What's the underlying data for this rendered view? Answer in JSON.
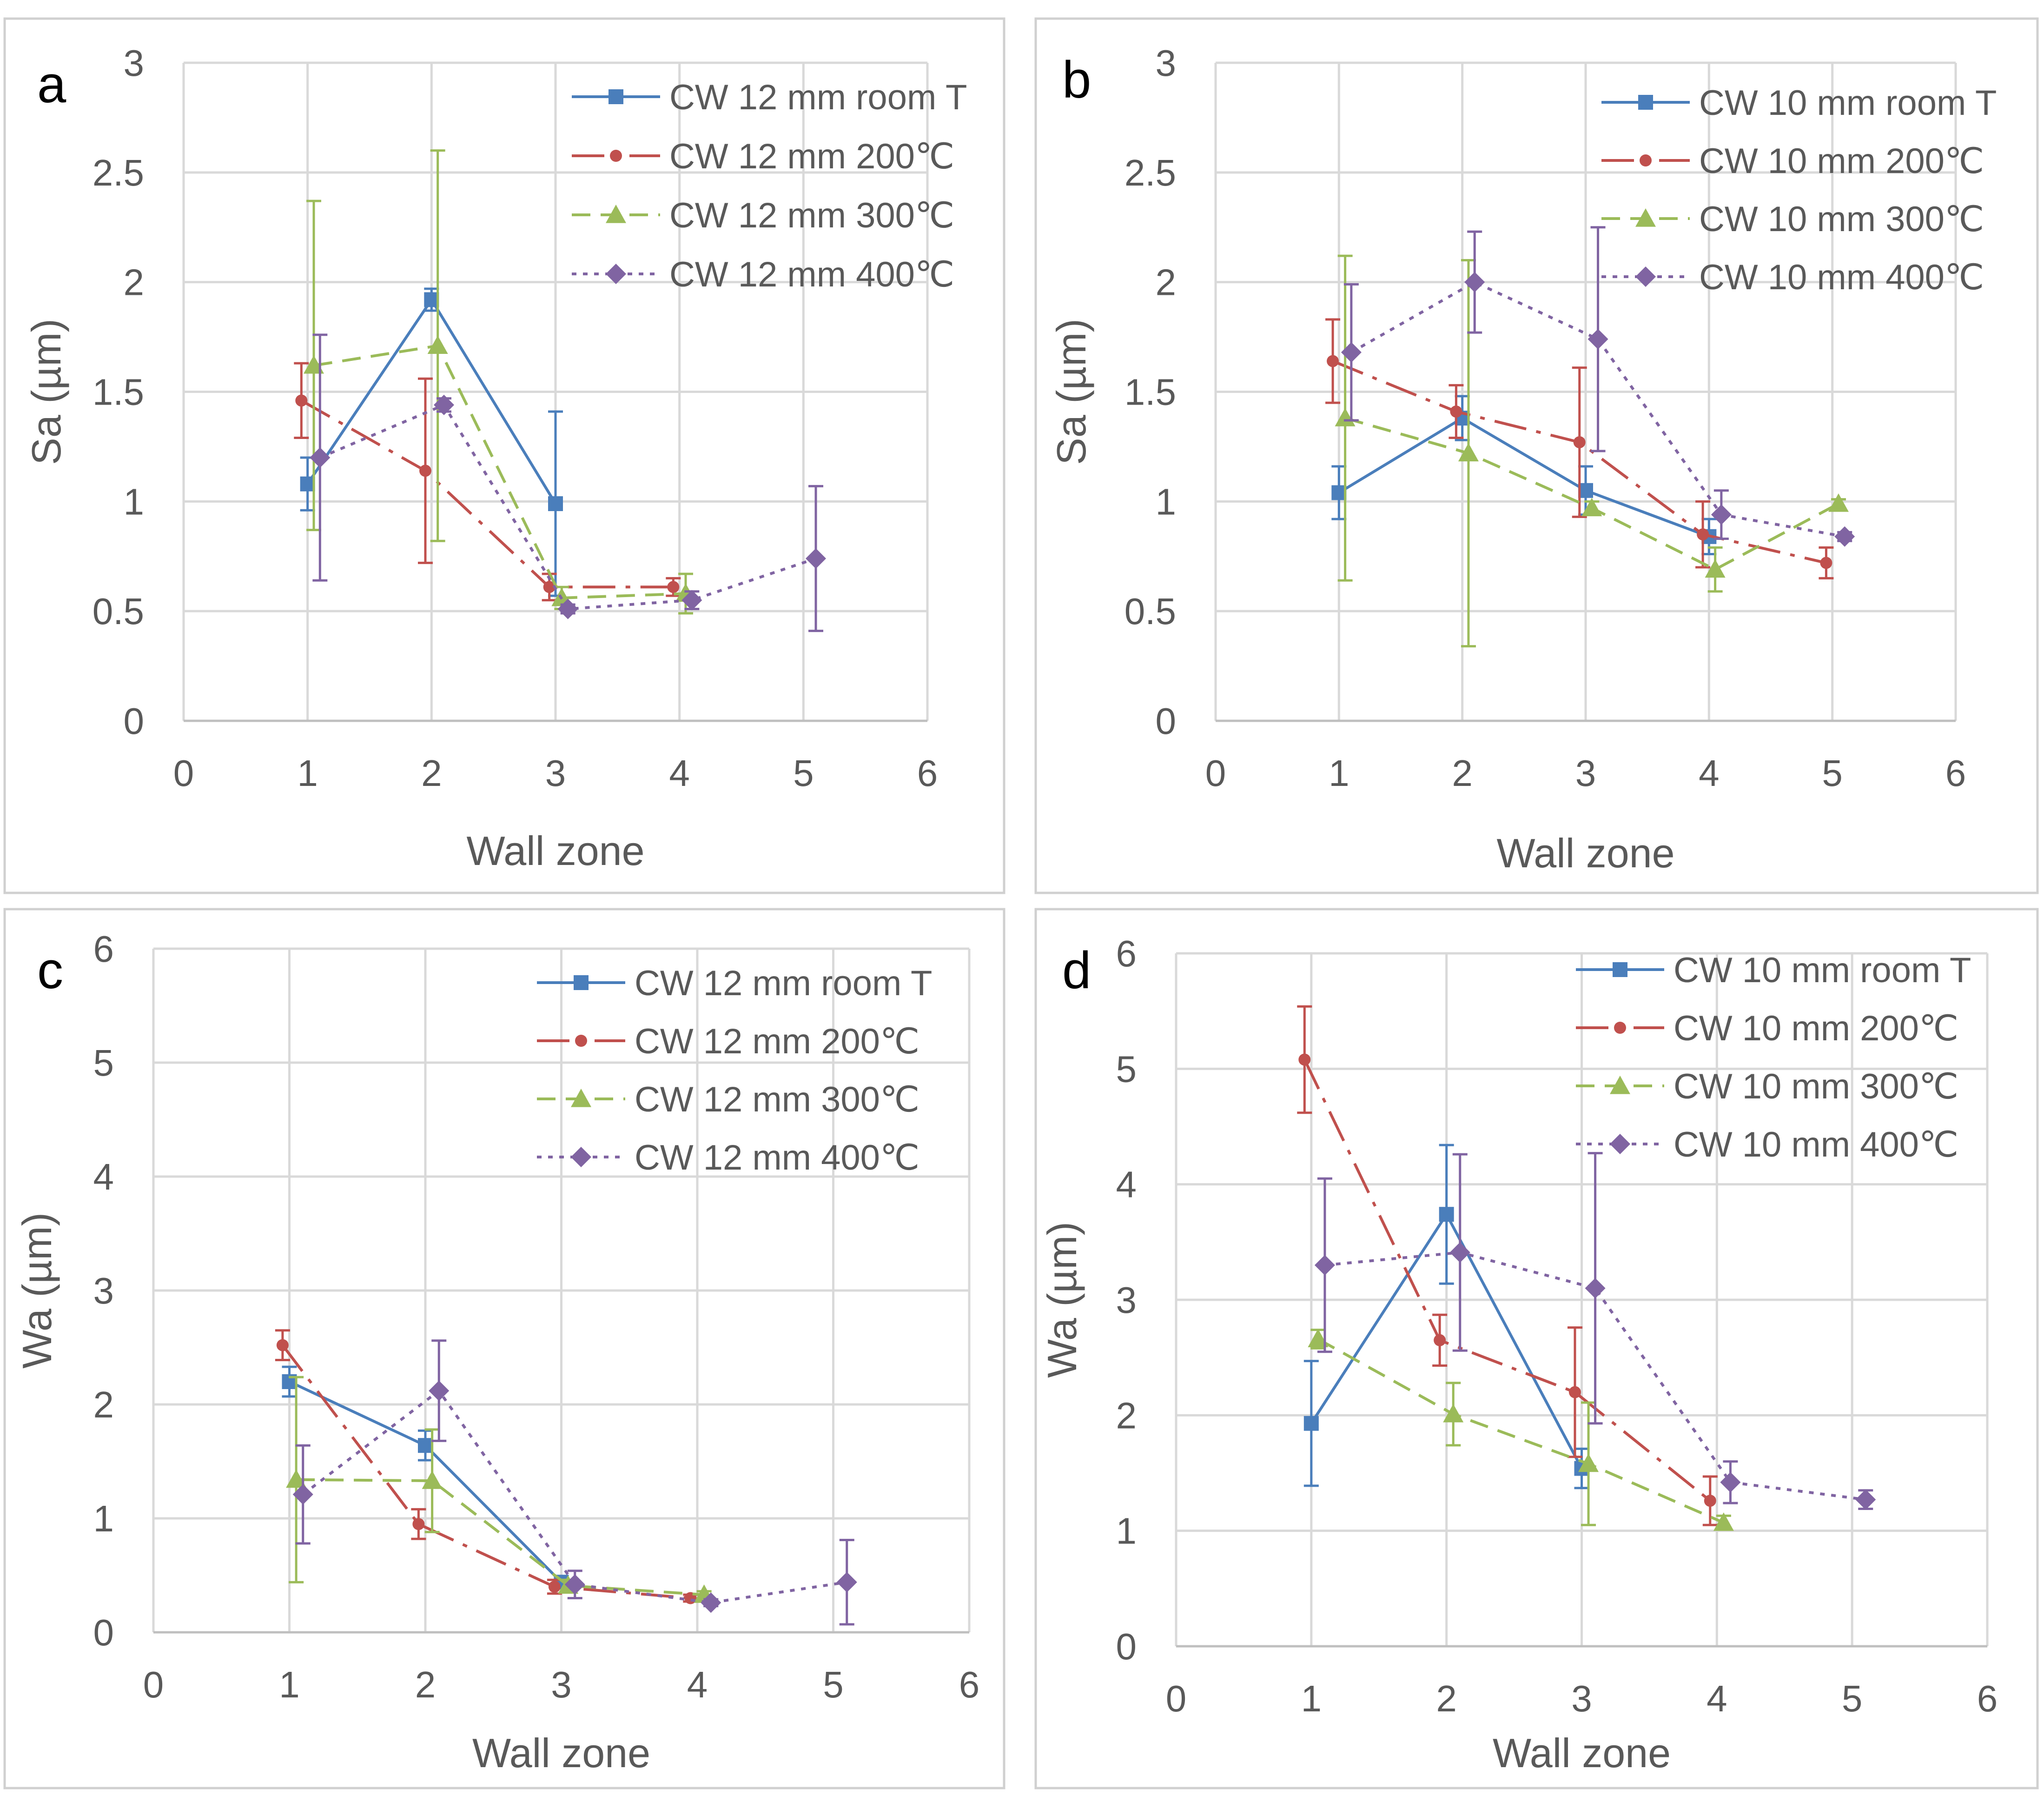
{
  "colors": {
    "room_T": "#4a7ebb",
    "200C": "#c0504d",
    "300C": "#9bbb59",
    "400C": "#8064a2"
  },
  "chart_data": [
    {
      "panel": "a",
      "type": "line",
      "xlabel": "Wall zone",
      "ylabel": "Sa (µm)",
      "xlim": [
        0,
        6
      ],
      "ylim": [
        0,
        3
      ],
      "xticks": [
        "0",
        "1",
        "2",
        "3",
        "4",
        "5",
        "6"
      ],
      "yticks": [
        "0",
        "0.5",
        "1",
        "1.5",
        "2",
        "2.5",
        "3"
      ],
      "legend_position": "top-right",
      "series": [
        {
          "name": "CW 12 mm room T",
          "key": "room_T",
          "marker": "square",
          "dash": "solid",
          "x": [
            1,
            2,
            3
          ],
          "y": [
            1.08,
            1.92,
            0.99
          ],
          "err": [
            0.12,
            0.05,
            0.42
          ]
        },
        {
          "name": "CW 12 mm 200℃",
          "key": "200C",
          "marker": "circle",
          "dash": "dashdot",
          "x": [
            0.95,
            1.95,
            2.95,
            3.95
          ],
          "y": [
            1.46,
            1.14,
            0.61,
            0.61
          ],
          "err": [
            0.17,
            0.42,
            0.06,
            0.04
          ]
        },
        {
          "name": "CW 12 mm 300℃",
          "key": "300C",
          "marker": "triangle",
          "dash": "dashed",
          "x": [
            1.05,
            2.05,
            3.05,
            4.05
          ],
          "y": [
            1.62,
            1.71,
            0.56,
            0.58
          ],
          "err": [
            0.75,
            0.89,
            0.05,
            0.09
          ]
        },
        {
          "name": "CW 12 mm 400℃",
          "key": "400C",
          "marker": "diamond",
          "dash": "dotted",
          "x": [
            1.1,
            2.1,
            3.1,
            4.1,
            5.1
          ],
          "y": [
            1.2,
            1.44,
            0.51,
            0.55,
            0.74
          ],
          "err": [
            0.56,
            0.03,
            0.02,
            0.04,
            0.33
          ]
        }
      ]
    },
    {
      "panel": "b",
      "type": "line",
      "xlabel": "Wall zone",
      "ylabel": "Sa (µm)",
      "xlim": [
        0,
        6
      ],
      "ylim": [
        0,
        3
      ],
      "xticks": [
        "0",
        "1",
        "2",
        "3",
        "4",
        "5",
        "6"
      ],
      "yticks": [
        "0",
        "0.5",
        "1",
        "1.5",
        "2",
        "2.5",
        "3"
      ],
      "legend_position": "top-right",
      "series": [
        {
          "name": "CW 10 mm room T",
          "key": "room_T",
          "marker": "square",
          "dash": "solid",
          "x": [
            1,
            2,
            3,
            4
          ],
          "y": [
            1.04,
            1.38,
            1.05,
            0.84
          ],
          "err": [
            0.12,
            0.1,
            0.11,
            0.08
          ]
        },
        {
          "name": "CW 10 mm 200℃",
          "key": "200C",
          "marker": "circle",
          "dash": "dashdot",
          "x": [
            0.95,
            1.95,
            2.95,
            3.95,
            4.95
          ],
          "y": [
            1.64,
            1.41,
            1.27,
            0.85,
            0.72
          ],
          "err": [
            0.19,
            0.12,
            0.34,
            0.15,
            0.07
          ]
        },
        {
          "name": "CW 10 mm 300℃",
          "key": "300C",
          "marker": "triangle",
          "dash": "dashed",
          "x": [
            1.05,
            2.05,
            3.05,
            4.05,
            5.05
          ],
          "y": [
            1.38,
            1.22,
            0.97,
            0.69,
            0.99
          ],
          "err": [
            0.74,
            0.88,
            0.03,
            0.1,
            0.02
          ]
        },
        {
          "name": "CW 10 mm 400℃",
          "key": "400C",
          "marker": "diamond",
          "dash": "dotted",
          "x": [
            1.1,
            2.1,
            3.1,
            4.1,
            5.1
          ],
          "y": [
            1.68,
            2.0,
            1.74,
            0.94,
            0.84
          ],
          "err": [
            0.31,
            0.23,
            0.51,
            0.11,
            0.02
          ]
        }
      ]
    },
    {
      "panel": "c",
      "type": "line",
      "xlabel": "Wall zone",
      "ylabel": "Wa (µm)",
      "xlim": [
        0,
        6
      ],
      "ylim": [
        0,
        6
      ],
      "xticks": [
        "0",
        "1",
        "2",
        "3",
        "4",
        "5",
        "6"
      ],
      "yticks": [
        "0",
        "1",
        "2",
        "3",
        "4",
        "5",
        "6"
      ],
      "legend_position": "top-right",
      "series": [
        {
          "name": "CW 12 mm room T",
          "key": "room_T",
          "marker": "square",
          "dash": "solid",
          "x": [
            1,
            2,
            3
          ],
          "y": [
            2.2,
            1.64,
            0.44
          ],
          "err": [
            0.13,
            0.13,
            0.05
          ]
        },
        {
          "name": "CW 12 mm 200℃",
          "key": "200C",
          "marker": "circle",
          "dash": "dashdot",
          "x": [
            0.95,
            1.95,
            2.95,
            3.95
          ],
          "y": [
            2.52,
            0.95,
            0.4,
            0.3
          ],
          "err": [
            0.13,
            0.13,
            0.06,
            0.03
          ]
        },
        {
          "name": "CW 12 mm 300℃",
          "key": "300C",
          "marker": "triangle",
          "dash": "dashed",
          "x": [
            1.05,
            2.05,
            3.05,
            4.05
          ],
          "y": [
            1.34,
            1.33,
            0.41,
            0.33
          ],
          "err": [
            0.9,
            0.45,
            0.05,
            0.03
          ]
        },
        {
          "name": "CW 12 mm 400℃",
          "key": "400C",
          "marker": "diamond",
          "dash": "dotted",
          "x": [
            1.1,
            2.1,
            3.1,
            4.1,
            5.1
          ],
          "y": [
            1.21,
            2.12,
            0.42,
            0.26,
            0.44
          ],
          "err": [
            0.43,
            0.44,
            0.12,
            0.03,
            0.37
          ]
        }
      ]
    },
    {
      "panel": "d",
      "type": "line",
      "xlabel": "Wall zone",
      "ylabel": "Wa (µm)",
      "xlim": [
        0,
        6
      ],
      "ylim": [
        0,
        6
      ],
      "xticks": [
        "0",
        "1",
        "2",
        "3",
        "4",
        "5",
        "6"
      ],
      "yticks": [
        "0",
        "1",
        "2",
        "3",
        "4",
        "5",
        "6"
      ],
      "legend_position": "top-right",
      "series": [
        {
          "name": "CW 10 mm room T",
          "key": "room_T",
          "marker": "square",
          "dash": "solid",
          "x": [
            1,
            2,
            3
          ],
          "y": [
            1.93,
            3.74,
            1.54
          ],
          "err": [
            0.54,
            0.6,
            0.17
          ]
        },
        {
          "name": "CW 10 mm 200℃",
          "key": "200C",
          "marker": "circle",
          "dash": "dashdot",
          "x": [
            0.95,
            1.95,
            2.95,
            3.95
          ],
          "y": [
            5.08,
            2.65,
            2.2,
            1.26
          ],
          "err": [
            0.46,
            0.22,
            0.56,
            0.21
          ]
        },
        {
          "name": "CW 10 mm 300℃",
          "key": "300C",
          "marker": "triangle",
          "dash": "dashed",
          "x": [
            1.05,
            2.05,
            3.05,
            4.05
          ],
          "y": [
            2.66,
            2.01,
            1.58,
            1.07
          ],
          "err": [
            0.08,
            0.27,
            0.53,
            0.06
          ]
        },
        {
          "name": "CW 10 mm 400℃",
          "key": "400C",
          "marker": "diamond",
          "dash": "dotted",
          "x": [
            1.1,
            2.1,
            3.1,
            4.1,
            5.1
          ],
          "y": [
            3.3,
            3.41,
            3.1,
            1.42,
            1.27
          ],
          "err": [
            0.75,
            0.85,
            1.17,
            0.18,
            0.08
          ]
        }
      ]
    }
  ]
}
